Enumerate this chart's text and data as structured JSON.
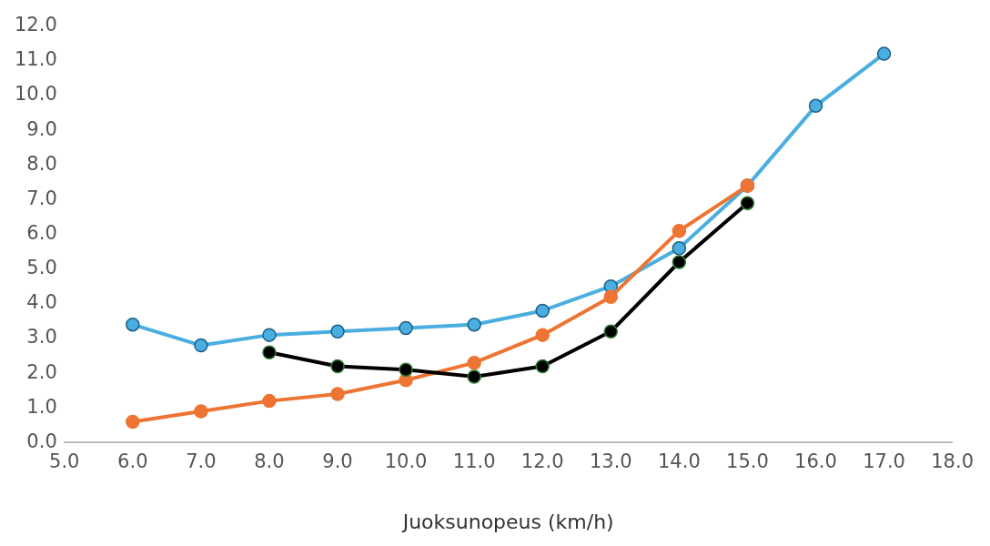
{
  "chart_data": {
    "type": "line",
    "xlabel": "Juoksunopeus (km/h)",
    "marker": "circle",
    "legend": false,
    "grid": false,
    "xlim": [
      5,
      18
    ],
    "xticks": [
      {
        "value": 5,
        "label": "5.0"
      },
      {
        "value": 6,
        "label": "6.0"
      },
      {
        "value": 7,
        "label": "7.0"
      },
      {
        "value": 8,
        "label": "8.0"
      },
      {
        "value": 9,
        "label": "9.0"
      },
      {
        "value": 10,
        "label": "10.0"
      },
      {
        "value": 11,
        "label": "11.0"
      },
      {
        "value": 12,
        "label": "12.0"
      },
      {
        "value": 13,
        "label": "13.0"
      },
      {
        "value": 14,
        "label": "14.0"
      },
      {
        "value": 15,
        "label": "15.0"
      },
      {
        "value": 16,
        "label": "16.0"
      },
      {
        "value": 17,
        "label": "17.0"
      },
      {
        "value": 18,
        "label": "18.0"
      }
    ],
    "ylim": [
      0,
      12
    ],
    "yticks": [
      {
        "value": 0,
        "label": "0.0"
      },
      {
        "value": 1,
        "label": "1.0"
      },
      {
        "value": 2,
        "label": "2.0"
      },
      {
        "value": 3,
        "label": "3.0"
      },
      {
        "value": 4,
        "label": "4.0"
      },
      {
        "value": 5,
        "label": "5.0"
      },
      {
        "value": 6,
        "label": "6.0"
      },
      {
        "value": 7,
        "label": "7.0"
      },
      {
        "value": 8,
        "label": "8.0"
      },
      {
        "value": 9,
        "label": "9.0"
      },
      {
        "value": 10,
        "label": "10.0"
      },
      {
        "value": 11,
        "label": "11.0"
      },
      {
        "value": 12,
        "label": "12.0"
      }
    ],
    "series": [
      {
        "color": "#4aaee0",
        "x": [
          6,
          7,
          8,
          9,
          10,
          11,
          12,
          13,
          14,
          15,
          16,
          17
        ],
        "values": [
          3.4,
          2.8,
          3.1,
          3.2,
          3.3,
          3.4,
          3.8,
          4.5,
          5.6,
          7.4,
          9.7,
          11.2
        ]
      },
      {
        "color": "#ed7432",
        "x": [
          6,
          7,
          8,
          9,
          10,
          11,
          12,
          13,
          14,
          15
        ],
        "values": [
          0.6,
          0.9,
          1.2,
          1.4,
          1.8,
          2.3,
          3.1,
          4.2,
          6.1,
          7.4
        ]
      },
      {
        "color": "#000000",
        "x": [
          8,
          9,
          10,
          11,
          12,
          13,
          14,
          15
        ],
        "values": [
          2.6,
          2.2,
          2.1,
          1.9,
          2.2,
          3.2,
          5.2,
          6.9
        ]
      }
    ]
  }
}
